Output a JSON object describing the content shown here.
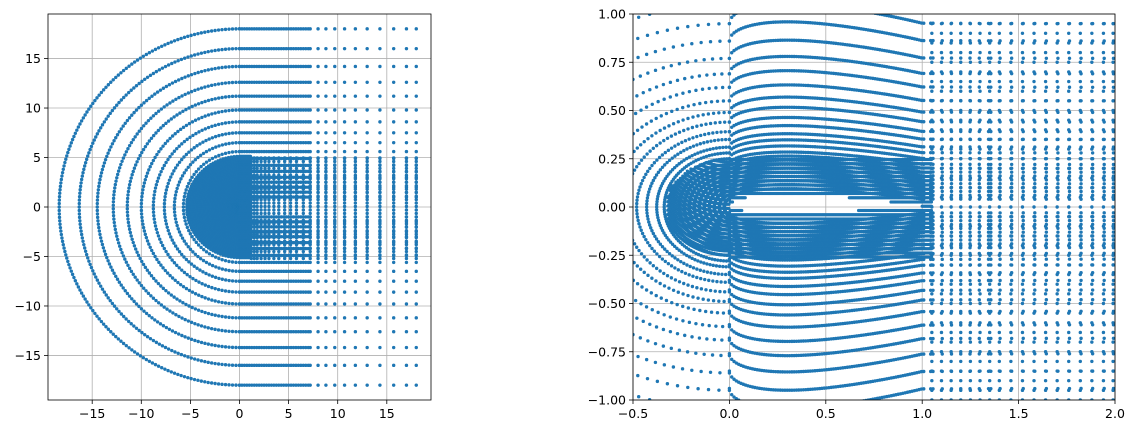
{
  "chart_data": [
    {
      "type": "scatter",
      "title": "",
      "xlabel": "",
      "ylabel": "",
      "xlim": [
        -19.5,
        19.5
      ],
      "ylim": [
        -19.5,
        19.5
      ],
      "xticks": [
        -15,
        -10,
        -5,
        0,
        5,
        10,
        15
      ],
      "yticks": [
        -15,
        -10,
        -5,
        0,
        5,
        10,
        15
      ],
      "xtick_labels": [
        "−15",
        "−10",
        "−5",
        "0",
        "5",
        "10",
        "15"
      ],
      "ytick_labels": [
        "−15",
        "−10",
        "−5",
        "0",
        "5",
        "10",
        "15"
      ],
      "grid": true,
      "series": [
        {
          "color": "#1f77b4",
          "description": "C-type mesh nodes around an airfoil",
          "ring_half_widths": [
            1.0,
            1.5,
            2.0,
            2.5,
            3.0,
            3.6,
            4.2,
            4.9,
            5.6,
            6.5,
            7.5,
            8.6,
            9.8,
            11.2,
            12.6,
            14.2,
            16.0,
            18.0
          ],
          "x_max": 18.0,
          "wake_x_stations": [
            1.2,
            1.5,
            1.8,
            2.2,
            2.6,
            3.0,
            3.5,
            4.0,
            4.6,
            5.2,
            5.8,
            6.5,
            7.2,
            8.0,
            8.8,
            9.7,
            10.7,
            11.8,
            13.0,
            14.3,
            15.7,
            17.0,
            18.0
          ]
        }
      ]
    },
    {
      "type": "scatter",
      "title": "",
      "xlabel": "",
      "ylabel": "",
      "xlim": [
        -0.5,
        2.0
      ],
      "ylim": [
        -1.0,
        1.0
      ],
      "xticks": [
        -0.5,
        0.0,
        0.5,
        1.0,
        1.5,
        2.0
      ],
      "yticks": [
        -1.0,
        -0.75,
        -0.5,
        -0.25,
        0.0,
        0.25,
        0.5,
        0.75,
        1.0
      ],
      "xtick_labels": [
        "−0.5",
        "0.0",
        "0.5",
        "1.0",
        "1.5",
        "2.0"
      ],
      "ytick_labels": [
        "−1.00",
        "−0.75",
        "−0.50",
        "−0.25",
        "0.00",
        "0.25",
        "0.50",
        "0.75",
        "1.00"
      ],
      "grid": true,
      "series": [
        {
          "color": "#1f77b4",
          "description": "zoomed view of the mesh near the airfoil",
          "ring_offsets": [
            0.02,
            0.04,
            0.06,
            0.08,
            0.1,
            0.12,
            0.14,
            0.16,
            0.18,
            0.2,
            0.23,
            0.26,
            0.29,
            0.33,
            0.37,
            0.42,
            0.47,
            0.53,
            0.6,
            0.67,
            0.75,
            0.84,
            0.93,
            1.03
          ],
          "airfoil_chord": [
            0.0,
            1.0
          ],
          "airfoil_max_thickness": 0.12,
          "wake_x_stations": [
            1.05,
            1.1,
            1.15,
            1.2,
            1.25,
            1.3,
            1.35,
            1.4,
            1.46,
            1.52,
            1.58,
            1.64,
            1.7,
            1.76,
            1.82,
            1.88,
            1.94,
            1.99
          ]
        }
      ]
    }
  ]
}
